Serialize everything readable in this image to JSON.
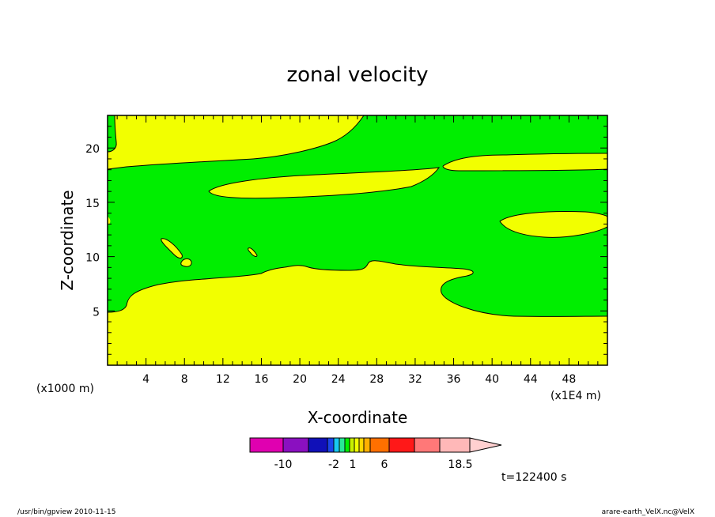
{
  "chart_data": {
    "type": "heatmap",
    "title": "zonal velocity",
    "xlabel": "X-coordinate",
    "ylabel": "Z-coordinate",
    "x_scale_label": "(x1E4 m)",
    "y_scale_label": "(x1000 m)",
    "xlim": [
      0,
      52
    ],
    "ylim": [
      0,
      23
    ],
    "x_ticks": [
      4,
      8,
      12,
      16,
      20,
      24,
      28,
      32,
      36,
      40,
      44,
      48
    ],
    "y_ticks": [
      5,
      10,
      15,
      20
    ],
    "grid": false,
    "regions": [
      {
        "name": "yellow",
        "color": "#f2ff00",
        "interval": "1 to 2"
      },
      {
        "name": "green",
        "color": "#00ee00",
        "interval": "0 to 1"
      }
    ],
    "colorbar": {
      "colors": [
        "#e000b0",
        "#8a10c0",
        "#1010b8",
        "#1a44e8",
        "#18c8f0",
        "#28e898",
        "#00ee00",
        "#c8f000",
        "#f2ff00",
        "#ffd800",
        "#ffb000",
        "#ff7000",
        "#ff1818",
        "#ff7878",
        "#ffb8b8",
        "#ffd0d0"
      ],
      "tick_labels": [
        "-10",
        "-2",
        "1",
        "6",
        "18.5"
      ]
    },
    "time_label": "t=122400 s"
  },
  "footer": {
    "left": "/usr/bin/gpview   2010-11-15",
    "right": "arare-earth_VelX.nc@VelX"
  }
}
